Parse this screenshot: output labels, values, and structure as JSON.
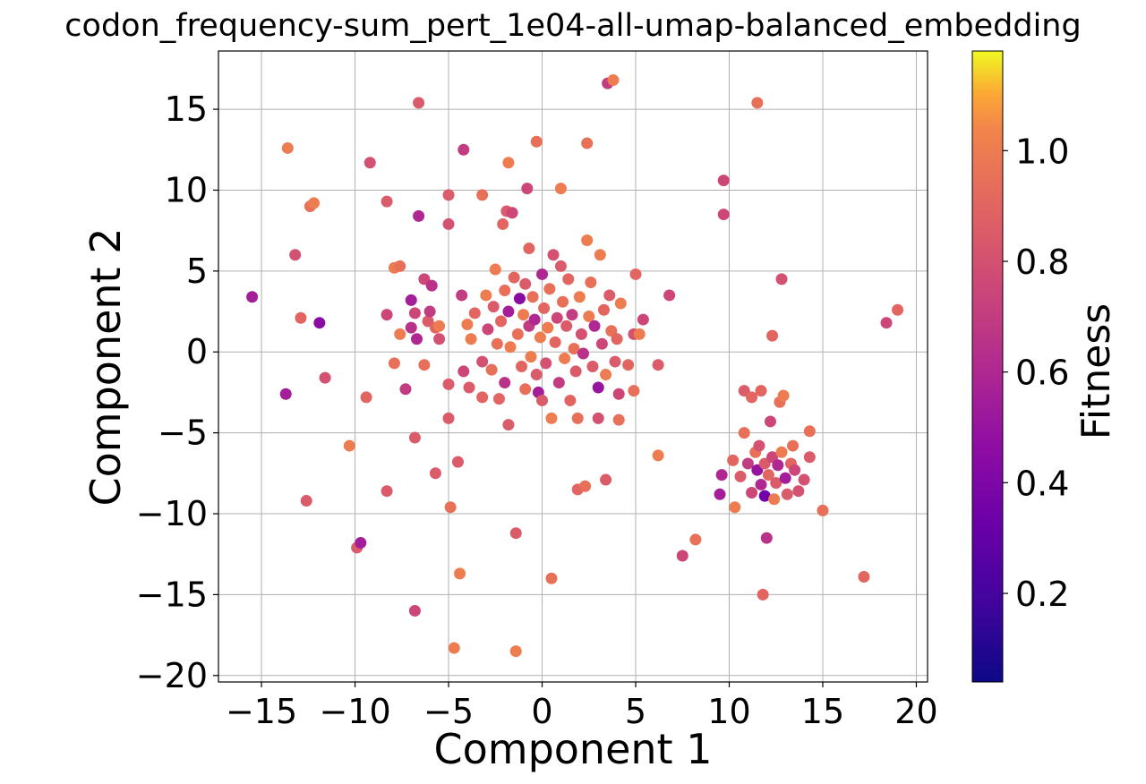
{
  "chart_data": {
    "type": "scatter",
    "title": "codon_frequency-sum_pert_1e04-all-umap-balanced_embedding",
    "xlabel": "Component 1",
    "ylabel": "Component 2",
    "xlim": [
      -17.3,
      20.6
    ],
    "ylim": [
      -20.4,
      18.6
    ],
    "xticks": [
      -15,
      -10,
      -5,
      0,
      5,
      10,
      15,
      20
    ],
    "xtick_labels": [
      "−15",
      "−10",
      "−5",
      "0",
      "5",
      "10",
      "15",
      "20"
    ],
    "yticks": [
      -20,
      -15,
      -10,
      -5,
      0,
      5,
      10,
      15
    ],
    "ytick_labels": [
      "−20",
      "−15",
      "−10",
      "−5",
      "0",
      "5",
      "10",
      "15"
    ],
    "grid": true,
    "colormap": "plasma",
    "colorbar": {
      "label": "Fitness",
      "range": [
        0.04,
        1.18
      ],
      "ticks": [
        0.2,
        0.4,
        0.6,
        0.8,
        1.0
      ],
      "tick_labels": [
        "0.2",
        "0.4",
        "0.6",
        "0.8",
        "1.0"
      ]
    },
    "points": [
      [
        -15.5,
        3.4,
        0.55
      ],
      [
        -13.7,
        -2.6,
        0.55
      ],
      [
        -13.6,
        12.6,
        1.0
      ],
      [
        -13.2,
        6.0,
        0.8
      ],
      [
        -12.9,
        2.1,
        0.9
      ],
      [
        -12.6,
        -9.2,
        0.85
      ],
      [
        -12.4,
        9.0,
        0.95
      ],
      [
        -12.2,
        9.2,
        1.0
      ],
      [
        -11.9,
        1.8,
        0.45
      ],
      [
        -11.6,
        -1.6,
        0.8
      ],
      [
        -9.9,
        -12.1,
        0.85
      ],
      [
        -9.7,
        -11.8,
        0.55
      ],
      [
        -9.4,
        -2.8,
        0.9
      ],
      [
        -9.2,
        11.7,
        0.8
      ],
      [
        -10.3,
        -5.8,
        1.0
      ],
      [
        -8.3,
        9.3,
        0.85
      ],
      [
        -8.3,
        2.3,
        0.75
      ],
      [
        -8.3,
        -8.6,
        0.85
      ],
      [
        -7.9,
        5.2,
        1.0
      ],
      [
        -7.6,
        5.3,
        0.95
      ],
      [
        -7.9,
        -0.7,
        0.95
      ],
      [
        -7.6,
        1.1,
        1.0
      ],
      [
        -7.3,
        -2.3,
        0.7
      ],
      [
        -7.0,
        3.2,
        0.55
      ],
      [
        -7.0,
        1.5,
        0.65
      ],
      [
        -6.8,
        2.4,
        0.75
      ],
      [
        -6.7,
        0.8,
        0.6
      ],
      [
        -6.8,
        -5.3,
        0.85
      ],
      [
        -6.8,
        -16.0,
        0.75
      ],
      [
        -6.6,
        15.4,
        0.85
      ],
      [
        -6.6,
        8.4,
        0.6
      ],
      [
        -6.3,
        -0.8,
        0.95
      ],
      [
        -6.3,
        4.5,
        0.75
      ],
      [
        -6.1,
        1.9,
        0.85
      ],
      [
        -6.0,
        2.5,
        0.7
      ],
      [
        -5.9,
        4.1,
        0.65
      ],
      [
        -5.7,
        1.5,
        0.9
      ],
      [
        -5.7,
        -7.5,
        0.85
      ],
      [
        -5.5,
        1.6,
        1.0
      ],
      [
        -5.5,
        0.8,
        0.8
      ],
      [
        -5.0,
        9.7,
        0.85
      ],
      [
        -5.0,
        7.9,
        0.8
      ],
      [
        -5.0,
        -2.0,
        0.85
      ],
      [
        -5.0,
        -4.1,
        0.85
      ],
      [
        -4.9,
        -9.6,
        0.95
      ],
      [
        -4.7,
        -18.3,
        1.0
      ],
      [
        -4.5,
        -6.8,
        0.85
      ],
      [
        -4.4,
        -13.7,
        1.0
      ],
      [
        -4.3,
        3.5,
        0.7
      ],
      [
        -4.2,
        12.5,
        0.7
      ],
      [
        -4.2,
        -1.2,
        0.75
      ],
      [
        -4.0,
        1.7,
        1.0
      ],
      [
        -3.9,
        -2.2,
        0.85
      ],
      [
        -3.8,
        0.8,
        1.0
      ],
      [
        -3.6,
        2.4,
        0.9
      ],
      [
        -3.2,
        9.7,
        0.95
      ],
      [
        -3.2,
        -2.8,
        0.9
      ],
      [
        -3.2,
        -0.6,
        0.8
      ],
      [
        -3.0,
        3.5,
        1.0
      ],
      [
        -2.9,
        1.4,
        0.75
      ],
      [
        -2.7,
        -1.1,
        0.95
      ],
      [
        -2.6,
        2.8,
        0.85
      ],
      [
        -2.5,
        5.1,
        1.0
      ],
      [
        -2.4,
        0.5,
        0.95
      ],
      [
        -2.3,
        -2.9,
        0.9
      ],
      [
        -2.2,
        1.9,
        0.9
      ],
      [
        -2.1,
        7.9,
        0.9
      ],
      [
        -2.0,
        -1.9,
        0.65
      ],
      [
        -2.0,
        3.8,
        0.95
      ],
      [
        -1.9,
        8.7,
        0.85
      ],
      [
        -1.8,
        11.7,
        1.0
      ],
      [
        -1.8,
        2.5,
        0.55
      ],
      [
        -1.8,
        -4.5,
        0.85
      ],
      [
        -1.7,
        0.3,
        1.0
      ],
      [
        -1.6,
        8.6,
        0.75
      ],
      [
        -1.5,
        4.6,
        0.9
      ],
      [
        -1.4,
        -11.2,
        0.85
      ],
      [
        -1.4,
        -18.5,
        1.0
      ],
      [
        -1.3,
        1.1,
        0.95
      ],
      [
        -1.2,
        3.3,
        0.45
      ],
      [
        -1.1,
        -0.9,
        0.9
      ],
      [
        -1.0,
        2.3,
        1.0
      ],
      [
        -0.9,
        4.2,
        0.85
      ],
      [
        -0.9,
        -2.3,
        0.95
      ],
      [
        -0.8,
        10.1,
        0.75
      ],
      [
        -0.7,
        6.4,
        0.9
      ],
      [
        -0.7,
        1.6,
        0.7
      ],
      [
        -0.6,
        -0.3,
        1.0
      ],
      [
        -0.5,
        3.4,
        0.95
      ],
      [
        -0.4,
        2.0,
        0.6
      ],
      [
        -0.3,
        13.0,
        0.95
      ],
      [
        -0.3,
        -1.4,
        0.85
      ],
      [
        -0.2,
        -2.5,
        0.55
      ],
      [
        -0.1,
        0.9,
        1.0
      ],
      [
        0.0,
        4.8,
        0.6
      ],
      [
        0.0,
        -3.0,
        0.85
      ],
      [
        0.1,
        2.7,
        0.9
      ],
      [
        0.2,
        -0.7,
        0.8
      ],
      [
        0.3,
        1.5,
        1.0
      ],
      [
        0.4,
        3.9,
        0.95
      ],
      [
        0.5,
        -4.1,
        1.0
      ],
      [
        0.5,
        -14.0,
        0.95
      ],
      [
        0.6,
        6.0,
        0.8
      ],
      [
        0.7,
        0.6,
        0.9
      ],
      [
        0.8,
        2.1,
        0.75
      ],
      [
        0.9,
        -1.9,
        0.7
      ],
      [
        1.0,
        10.1,
        1.0
      ],
      [
        1.0,
        5.3,
        0.85
      ],
      [
        1.1,
        3.1,
        0.95
      ],
      [
        1.2,
        -0.4,
        1.0
      ],
      [
        1.3,
        1.6,
        0.85
      ],
      [
        1.4,
        4.5,
        0.9
      ],
      [
        1.5,
        -3.0,
        0.9
      ],
      [
        1.6,
        2.3,
        0.7
      ],
      [
        1.7,
        0.2,
        0.95
      ],
      [
        1.8,
        -1.2,
        0.85
      ],
      [
        1.9,
        -8.5,
        0.9
      ],
      [
        1.9,
        -4.1,
        0.95
      ],
      [
        2.0,
        3.4,
        1.0
      ],
      [
        2.1,
        1.1,
        0.8
      ],
      [
        2.2,
        -0.1,
        0.65
      ],
      [
        2.3,
        -8.3,
        0.95
      ],
      [
        2.4,
        12.9,
        0.95
      ],
      [
        2.4,
        6.9,
        1.0
      ],
      [
        2.5,
        2.2,
        1.0
      ],
      [
        2.6,
        4.3,
        0.95
      ],
      [
        2.7,
        -0.9,
        0.85
      ],
      [
        2.8,
        1.6,
        0.6
      ],
      [
        3.0,
        -2.2,
        0.5
      ],
      [
        3.0,
        -4.1,
        0.8
      ],
      [
        3.1,
        6.0,
        1.0
      ],
      [
        3.2,
        0.5,
        0.75
      ],
      [
        3.3,
        2.6,
        0.9
      ],
      [
        3.4,
        -1.4,
        1.0
      ],
      [
        3.4,
        -7.9,
        0.85
      ],
      [
        3.5,
        16.6,
        0.7
      ],
      [
        3.6,
        3.5,
        0.85
      ],
      [
        3.7,
        1.3,
        0.95
      ],
      [
        3.8,
        16.8,
        1.0
      ],
      [
        3.9,
        -0.6,
        0.85
      ],
      [
        4.0,
        0.8,
        0.9
      ],
      [
        4.1,
        -2.6,
        0.75
      ],
      [
        4.1,
        -4.2,
        0.95
      ],
      [
        4.2,
        3.0,
        1.0
      ],
      [
        4.6,
        -0.8,
        0.9
      ],
      [
        4.9,
        1.1,
        0.8
      ],
      [
        4.9,
        -2.4,
        0.95
      ],
      [
        5.0,
        4.8,
        0.9
      ],
      [
        5.2,
        1.1,
        1.0
      ],
      [
        5.4,
        2.0,
        0.75
      ],
      [
        6.2,
        -0.8,
        0.85
      ],
      [
        6.2,
        -6.4,
        1.0
      ],
      [
        6.8,
        3.5,
        0.75
      ],
      [
        7.5,
        -12.6,
        0.75
      ],
      [
        8.2,
        -11.6,
        0.95
      ],
      [
        9.5,
        -8.8,
        0.55
      ],
      [
        9.6,
        -7.6,
        0.6
      ],
      [
        9.7,
        10.6,
        0.75
      ],
      [
        9.7,
        8.5,
        0.75
      ],
      [
        10.2,
        -6.7,
        0.9
      ],
      [
        10.3,
        -9.6,
        1.0
      ],
      [
        10.6,
        -7.7,
        0.85
      ],
      [
        10.8,
        -5.0,
        0.95
      ],
      [
        10.8,
        -2.4,
        0.85
      ],
      [
        11.0,
        -6.9,
        0.7
      ],
      [
        11.2,
        -2.8,
        0.9
      ],
      [
        11.2,
        -8.7,
        0.75
      ],
      [
        11.4,
        -6.2,
        0.95
      ],
      [
        11.5,
        15.4,
        0.95
      ],
      [
        11.5,
        -7.3,
        0.5
      ],
      [
        11.6,
        -5.8,
        0.8
      ],
      [
        11.7,
        -2.4,
        0.9
      ],
      [
        11.7,
        -8.2,
        0.6
      ],
      [
        11.8,
        -15.0,
        0.9
      ],
      [
        11.9,
        -8.9,
        0.35
      ],
      [
        11.9,
        -6.9,
        0.85
      ],
      [
        12.0,
        -11.5,
        0.65
      ],
      [
        12.1,
        -7.6,
        0.9
      ],
      [
        12.2,
        -4.3,
        0.75
      ],
      [
        12.3,
        1.0,
        0.9
      ],
      [
        12.3,
        -6.5,
        0.75
      ],
      [
        12.4,
        -9.1,
        1.0
      ],
      [
        12.5,
        -8.1,
        0.85
      ],
      [
        12.6,
        -7.0,
        0.6
      ],
      [
        12.7,
        -3.1,
        0.95
      ],
      [
        12.8,
        4.5,
        0.8
      ],
      [
        12.8,
        -6.2,
        1.0
      ],
      [
        12.9,
        -2.7,
        1.0
      ],
      [
        13.0,
        -7.8,
        0.55
      ],
      [
        13.1,
        -8.8,
        0.85
      ],
      [
        13.3,
        -6.9,
        0.9
      ],
      [
        13.4,
        -5.8,
        0.95
      ],
      [
        13.5,
        -7.3,
        0.75
      ],
      [
        13.7,
        -8.6,
        0.8
      ],
      [
        14.3,
        -4.9,
        0.95
      ],
      [
        14.3,
        -6.5,
        0.85
      ],
      [
        14.0,
        -7.9,
        0.8
      ],
      [
        15.0,
        -9.8,
        0.95
      ],
      [
        17.2,
        -13.9,
        0.9
      ],
      [
        18.4,
        1.8,
        0.75
      ],
      [
        19.0,
        2.6,
        0.9
      ]
    ]
  }
}
